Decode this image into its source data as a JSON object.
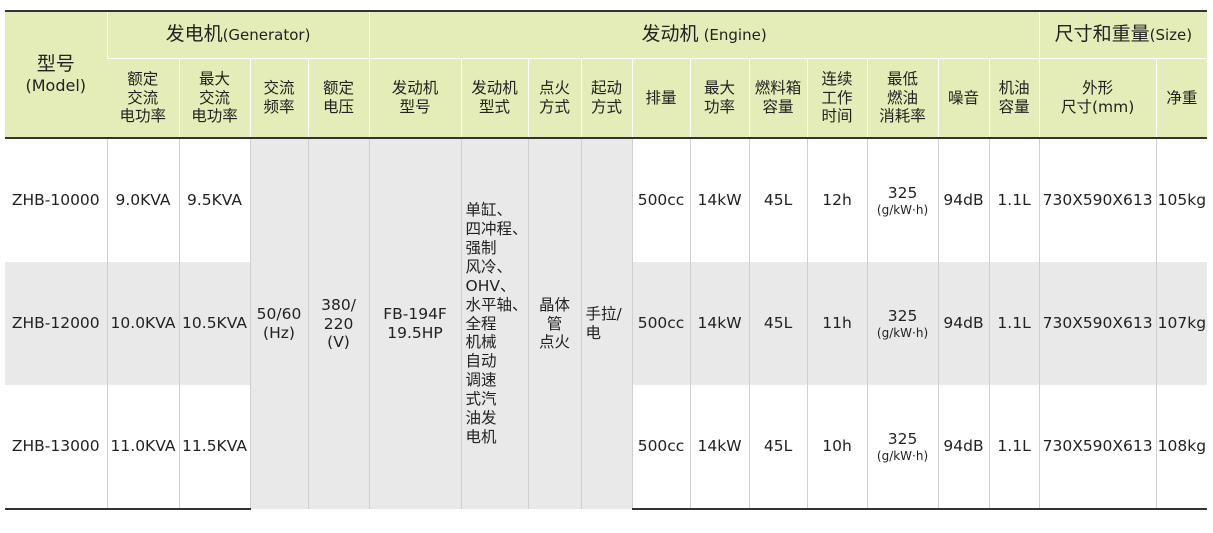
{
  "header": {
    "model": "型号",
    "model_en": "(Model)",
    "generator": "发电机",
    "generator_en": "(Generator)",
    "engine": "发动机",
    "engine_en": "(Engine)",
    "size": "尺寸和重量",
    "size_en": "(Size)",
    "columns": [
      [
        "额定",
        "交流",
        "电功率"
      ],
      [
        "最大",
        "交流",
        "电功率"
      ],
      [
        "交流",
        "频率"
      ],
      [
        "额定",
        "电压"
      ],
      [
        "发动机",
        "型号"
      ],
      [
        "发动机",
        "型式"
      ],
      [
        "点火",
        "方式"
      ],
      [
        "起动",
        "方式"
      ],
      [
        "排量"
      ],
      [
        "最大",
        "功率"
      ],
      [
        "燃料箱",
        "容量"
      ],
      [
        "连续",
        "工作",
        "时间"
      ],
      [
        "最低",
        "燃油",
        "消耗率"
      ],
      [
        "噪音"
      ],
      [
        "机油",
        "容量"
      ],
      [
        "外形",
        "尺寸(mm)"
      ],
      [
        "净重"
      ]
    ]
  },
  "shared": {
    "frequency": [
      "50/60",
      "(Hz)"
    ],
    "voltage": [
      "380/",
      "220",
      "(V)"
    ],
    "engine_model": [
      "FB-194F",
      "19.5HP"
    ],
    "engine_type": [
      "单缸、",
      "四冲程、",
      "强制",
      "风冷、",
      "OHV、",
      "水平轴、",
      "全程",
      "机械",
      "自动",
      "调速",
      "式汽",
      "油发",
      "电机"
    ],
    "ignition": [
      "晶体",
      "管",
      "点火"
    ],
    "start": [
      "手拉/",
      "电"
    ]
  },
  "rows": [
    {
      "model": "ZHB-10000",
      "rated": "9.0KVA",
      "max": "9.5KVA",
      "displacement": "500cc",
      "max_power": "14kW",
      "tank": "45L",
      "runtime": "12h",
      "fuel_rate": "325",
      "fuel_unit": "(g/kW·h)",
      "noise": "94dB",
      "oil": "1.1L",
      "dims": "730X590X613",
      "weight": "105kg"
    },
    {
      "model": "ZHB-12000",
      "rated": "10.0KVA",
      "max": "10.5KVA",
      "displacement": "500cc",
      "max_power": "14kW",
      "tank": "45L",
      "runtime": "11h",
      "fuel_rate": "325",
      "fuel_unit": "(g/kW·h)",
      "noise": "94dB",
      "oil": "1.1L",
      "dims": "730X590X613",
      "weight": "107kg"
    },
    {
      "model": "ZHB-13000",
      "rated": "11.0KVA",
      "max": "11.5KVA",
      "displacement": "500cc",
      "max_power": "14kW",
      "tank": "45L",
      "runtime": "10h",
      "fuel_rate": "325",
      "fuel_unit": "(g/kW·h)",
      "noise": "94dB",
      "oil": "1.1L",
      "dims": "730X590X613",
      "weight": "108kg"
    }
  ]
}
